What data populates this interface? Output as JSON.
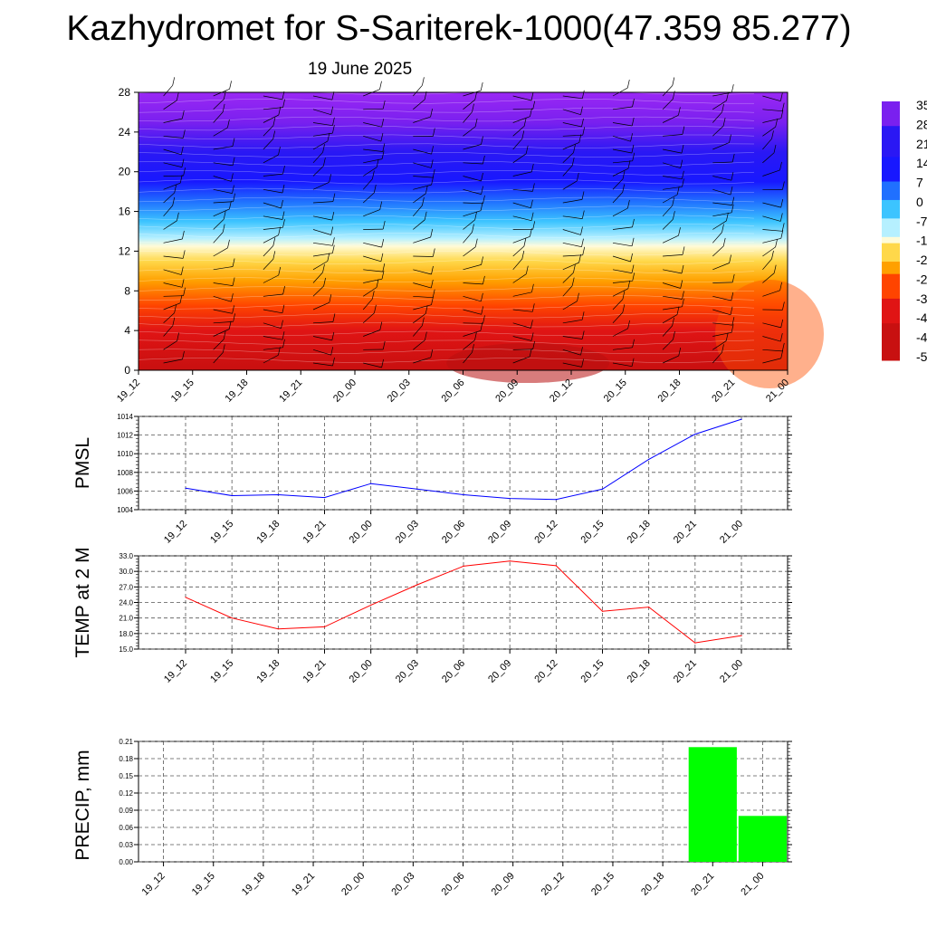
{
  "header": {
    "title": "Kazhydromet for S-Sariterek-1000(47.359 85.277)",
    "subtitle": "19 June 2025"
  },
  "time_labels": [
    "19_12",
    "19_15",
    "19_18",
    "19_21",
    "20_00",
    "20_03",
    "20_06",
    "20_09",
    "20_12",
    "20_15",
    "20_18",
    "20_21",
    "21_00"
  ],
  "colors": {
    "pmsl_line": "#0000ff",
    "temp_line": "#ff0000",
    "precip_bar": "#00ff00",
    "grid": "#555555"
  },
  "chart_data": [
    {
      "type": "heatmap",
      "name_hint": "cross-section",
      "y_ticks": [
        "0",
        "4",
        "8",
        "12",
        "16",
        "20",
        "24",
        "28"
      ],
      "ylim": [
        0,
        28
      ],
      "color_stops": [
        {
          "v": 0,
          "color": "#c81010"
        },
        {
          "v": 4,
          "color": "#e01414"
        },
        {
          "v": 6.5,
          "color": "#ff4400"
        },
        {
          "v": 9,
          "color": "#ffa000"
        },
        {
          "v": 11,
          "color": "#ffd84a"
        },
        {
          "v": 12.5,
          "color": "#fffbd8"
        },
        {
          "v": 13.3,
          "color": "#b6f0ff"
        },
        {
          "v": 15,
          "color": "#3cc4ff"
        },
        {
          "v": 17,
          "color": "#2070ff"
        },
        {
          "v": 19,
          "color": "#1818ff"
        },
        {
          "v": 22,
          "color": "#2a18f4"
        },
        {
          "v": 25,
          "color": "#7a20ef"
        },
        {
          "v": 28,
          "color": "#9a28f4"
        }
      ],
      "colorbar_labels": [
        "35",
        "28",
        "21",
        "14",
        "7",
        "0",
        "-7",
        "-1",
        "-2",
        "-2",
        "-3",
        "-4",
        "-4",
        "-5"
      ]
    },
    {
      "type": "line",
      "ylabel": "PMSL",
      "x": [
        "19_12",
        "19_15",
        "19_18",
        "19_21",
        "20_00",
        "20_03",
        "20_06",
        "20_09",
        "20_12",
        "20_15",
        "20_18",
        "20_21",
        "21_00"
      ],
      "series": [
        {
          "values": [
            1006.3,
            1005.5,
            1005.6,
            1005.3,
            1006.8,
            1006.2,
            1005.6,
            1005.2,
            1005.1,
            1006.2,
            1009.4,
            1012.1,
            1013.7
          ]
        }
      ],
      "ylim": [
        1004,
        1014
      ],
      "y_ticks": [
        "1004",
        "1006",
        "1008",
        "1010",
        "1012",
        "1014"
      ]
    },
    {
      "type": "line",
      "ylabel": "TEMP at 2 M",
      "x": [
        "19_12",
        "19_15",
        "19_18",
        "19_21",
        "20_00",
        "20_03",
        "20_06",
        "20_09",
        "20_12",
        "20_15",
        "20_18",
        "20_21",
        "21_00"
      ],
      "series": [
        {
          "values": [
            25.0,
            21.0,
            18.9,
            19.3,
            23.5,
            27.4,
            31.0,
            32.0,
            31.1,
            22.3,
            23.1,
            16.2,
            17.6
          ]
        }
      ],
      "ylim": [
        15,
        33
      ],
      "y_ticks": [
        "15.0",
        "18.0",
        "21.0",
        "24.0",
        "27.0",
        "30.0",
        "33.0"
      ]
    },
    {
      "type": "bar",
      "ylabel": "PRECIP, mm",
      "categories": [
        "19_12",
        "19_15",
        "19_18",
        "19_21",
        "20_00",
        "20_03",
        "20_06",
        "20_09",
        "20_12",
        "20_15",
        "20_18",
        "20_21",
        "21_00"
      ],
      "values": [
        0,
        0,
        0,
        0,
        0,
        0,
        0,
        0,
        0,
        0,
        0,
        0.2,
        0.08
      ],
      "ylim": [
        0,
        0.21
      ],
      "y_ticks": [
        "0.00",
        "0.03",
        "0.06",
        "0.09",
        "0.12",
        "0.15",
        "0.18",
        "0.21"
      ]
    }
  ]
}
